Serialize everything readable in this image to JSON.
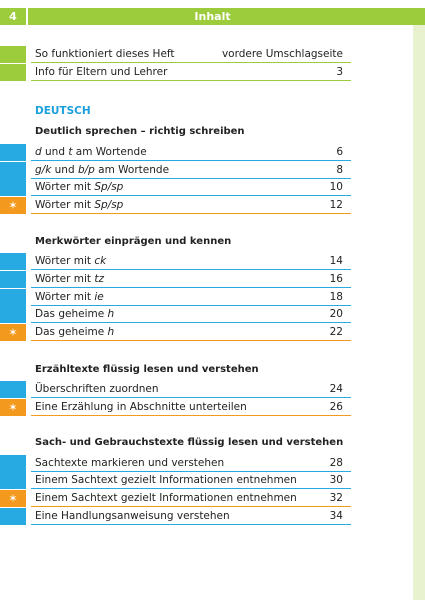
{
  "header": {
    "page_number": "4",
    "title": "Inhalt"
  },
  "intro_rows": [
    {
      "text": "So funktioniert dieses Heft",
      "page": "vordere Umschlagseite"
    },
    {
      "text": "Info für Eltern und Lehrer",
      "page": "3"
    }
  ],
  "section_title": "DEUTSCH",
  "groups": [
    {
      "title": "Deutlich sprechen – richtig schreiben",
      "rows": [
        {
          "pre": "",
          "it": "d",
          "mid": " und ",
          "it2": "t",
          "post": " am Wortende",
          "page": "6",
          "star": false
        },
        {
          "pre": "",
          "it": "g/k",
          "mid": " und ",
          "it2": "b/p",
          "post": " am Wortende",
          "page": "8",
          "star": false
        },
        {
          "pre": "Wörter mit ",
          "it": "Sp/sp",
          "mid": "",
          "it2": "",
          "post": "",
          "page": "10",
          "star": false
        },
        {
          "pre": "Wörter mit ",
          "it": "Sp/sp",
          "mid": "",
          "it2": "",
          "post": "",
          "page": "12",
          "star": true
        }
      ]
    },
    {
      "title": "Merkwörter einprägen und kennen",
      "rows": [
        {
          "pre": "Wörter mit ",
          "it": "ck",
          "mid": "",
          "it2": "",
          "post": "",
          "page": "14",
          "star": false
        },
        {
          "pre": "Wörter mit ",
          "it": "tz",
          "mid": "",
          "it2": "",
          "post": "",
          "page": "16",
          "star": false
        },
        {
          "pre": "Wörter mit ",
          "it": "ie",
          "mid": "",
          "it2": "",
          "post": "",
          "page": "18",
          "star": false
        },
        {
          "pre": "Das geheime ",
          "it": "h",
          "mid": "",
          "it2": "",
          "post": "",
          "page": "20",
          "star": false
        },
        {
          "pre": "Das geheime ",
          "it": "h",
          "mid": "",
          "it2": "",
          "post": "",
          "page": "22",
          "star": true
        }
      ]
    },
    {
      "title": "Erzähltexte flüssig lesen und verstehen",
      "rows": [
        {
          "pre": "Überschriften zuordnen",
          "it": "",
          "mid": "",
          "it2": "",
          "post": "",
          "page": "24",
          "star": false
        },
        {
          "pre": "Eine Erzählung in Abschnitte unterteilen",
          "it": "",
          "mid": "",
          "it2": "",
          "post": "",
          "page": "26",
          "star": true
        }
      ]
    },
    {
      "title": "Sach- und Gebrauchstexte flüssig lesen und verstehen",
      "rows": [
        {
          "pre": "Sachtexte markieren und verstehen",
          "it": "",
          "mid": "",
          "it2": "",
          "post": "",
          "page": "28",
          "star": false
        },
        {
          "pre": "Einem Sachtext gezielt Informationen entnehmen",
          "it": "",
          "mid": "",
          "it2": "",
          "post": "",
          "page": "30",
          "star": false
        },
        {
          "pre": "Einem Sachtext gezielt Informationen entnehmen",
          "it": "",
          "mid": "",
          "it2": "",
          "post": "",
          "page": "32",
          "star": true
        },
        {
          "pre": "Eine Handlungsanweisung verstehen",
          "it": "",
          "mid": "",
          "it2": "",
          "post": "",
          "page": "34",
          "star": false
        }
      ]
    }
  ],
  "colors": {
    "green": "#9ccb3b",
    "blue": "#27a9e1",
    "orange": "#f39a1e",
    "section_blue": "#1ba0dc"
  },
  "icons": {
    "star": "✶"
  }
}
